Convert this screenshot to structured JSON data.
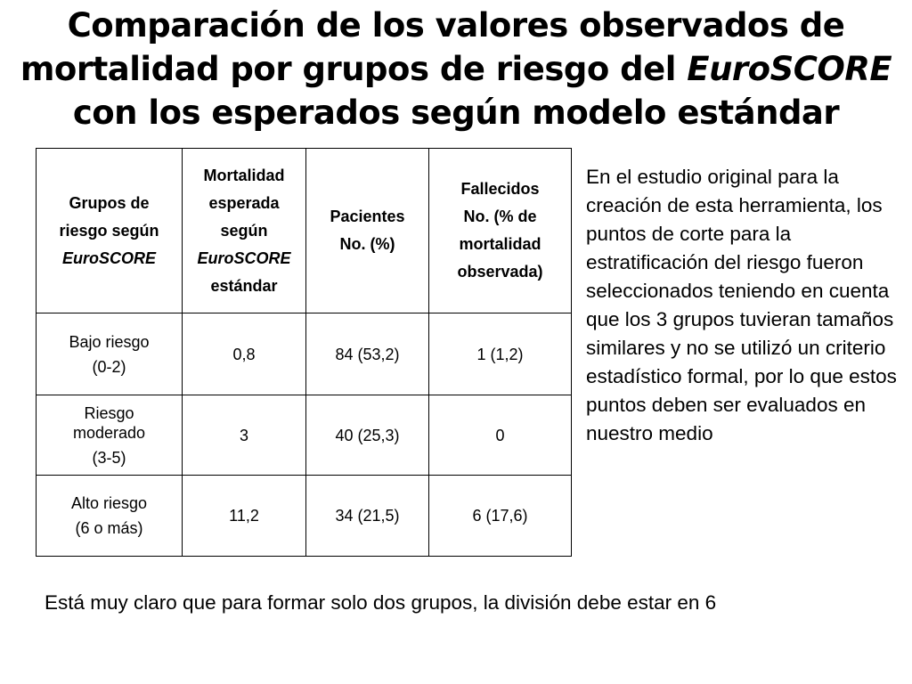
{
  "title": {
    "line1": "Comparación de los valores observados de",
    "line2_pre": "mortalidad por grupos de riesgo del ",
    "line2_em": "EuroSCORE",
    "line3": "con los esperados según modelo estándar"
  },
  "table": {
    "headers": {
      "col1": [
        "Grupos de",
        "riesgo según",
        "EuroSCORE"
      ],
      "col2": [
        "Mortalidad",
        "esperada",
        "según",
        "EuroSCORE",
        "estándar"
      ],
      "col3": [
        "Pacientes",
        "No. (%)"
      ],
      "col4": [
        "Fallecidos",
        "No. (% de",
        "mortalidad",
        "observada)"
      ]
    },
    "rows": [
      {
        "group": [
          "Bajo riesgo",
          "(0-2)"
        ],
        "expected": "0,8",
        "patients": "84 (53,2)",
        "deaths": "1 (1,2)"
      },
      {
        "group": [
          "Riesgo",
          "moderado",
          "(3-5)"
        ],
        "expected": "3",
        "patients": "40 (25,3)",
        "deaths": "0"
      },
      {
        "group": [
          "Alto riesgo",
          "(6 o más)"
        ],
        "expected": "11,2",
        "patients": "34 (21,5)",
        "deaths": "6 (17,6)"
      }
    ]
  },
  "side_text": "En el estudio original para la creación de esta herramienta, los puntos de corte para la estratificación del riesgo fueron seleccionados teniendo en cuenta que  los 3 grupos tuvieran tamaños similares y no se utilizó un criterio estadístico formal, por lo que estos puntos deben ser evaluados en nuestro medio",
  "footer_text": "Está muy claro que  para formar solo dos grupos,  la división debe estar en 6"
}
